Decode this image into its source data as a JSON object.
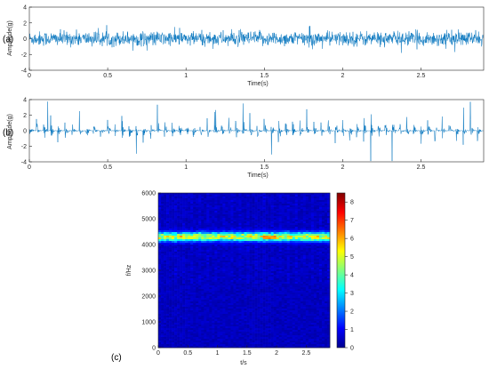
{
  "chart_data": [
    {
      "id": "a",
      "type": "line",
      "panel_label": "(a)",
      "xlabel": "Time(s)",
      "ylabel": "Amplitude(g)",
      "xlim": [
        0,
        2.9
      ],
      "ylim": [
        -4,
        4
      ],
      "x_ticks": [
        "0",
        "0.5",
        "1",
        "1.5",
        "2",
        "2.5"
      ],
      "y_ticks": [
        "4",
        "2",
        "0",
        "-2",
        "-4"
      ],
      "series_color": "#0072BD",
      "signal": {
        "kind": "broadband random vibration",
        "x_start": 0,
        "x_end": 2.9,
        "approx_rms": 0.45,
        "approx_peak": 1.6
      }
    },
    {
      "id": "b",
      "type": "line",
      "panel_label": "(b)",
      "xlabel": "Time(s)",
      "ylabel": "Amplitude(g)",
      "xlim": [
        0,
        2.9
      ],
      "ylim": [
        -4,
        4
      ],
      "x_ticks": [
        "0",
        "0.5",
        "1",
        "1.5",
        "2",
        "2.5"
      ],
      "y_ticks": [
        "4",
        "2",
        "0",
        "-2",
        "-4"
      ],
      "series_color": "#0072BD",
      "signal": {
        "kind": "impulsive bursts",
        "x_start": 0,
        "x_end": 2.9,
        "approx_peak": 3.8
      }
    },
    {
      "id": "c",
      "type": "heatmap",
      "panel_label": "(c)",
      "xlabel": "t/s",
      "ylabel": "f/Hz",
      "xlim": [
        0,
        2.9
      ],
      "ylim": [
        0,
        6000
      ],
      "x_ticks": [
        "0",
        "0.5",
        "1",
        "1.5",
        "2",
        "2.5"
      ],
      "y_ticks": [
        "6000",
        "5000",
        "4000",
        "3000",
        "2000",
        "1000",
        "0"
      ],
      "colorbar_ticks": [
        "8",
        "7",
        "6",
        "5",
        "4",
        "3",
        "2",
        "1",
        "0"
      ],
      "colorbar_range": [
        0,
        8.5
      ],
      "colormap": "jet",
      "dominant_band_hz": 4300,
      "band_peak_value": 6.5,
      "background_value": 0.35
    }
  ]
}
